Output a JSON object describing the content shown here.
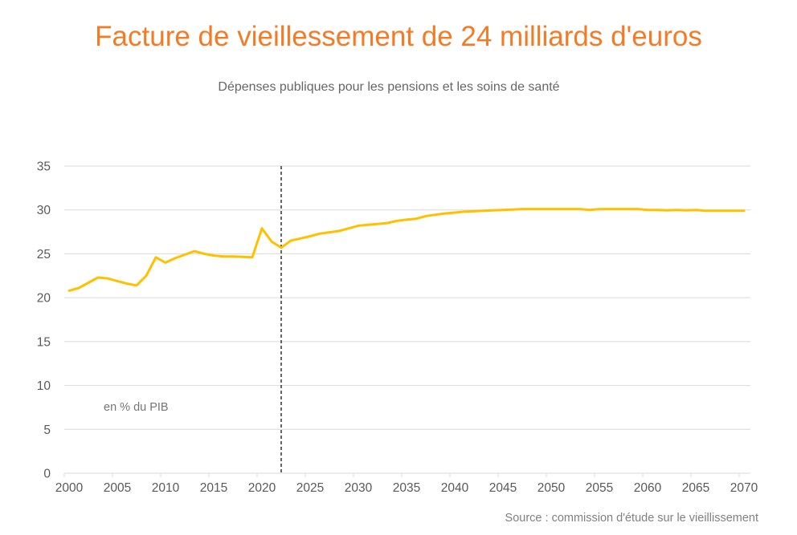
{
  "header": {
    "title": "Facture de vieillessement de 24 milliards d'euros",
    "subtitle": "Dépenses publiques pour les pensions et les soins de santé"
  },
  "footer": {
    "source": "Source : commission d'étude sur le vieillissement"
  },
  "colors": {
    "title": "#F47B26",
    "series": "#FFC000",
    "grid": "#D9D9D9",
    "marker_line": "#000000"
  },
  "chart_data": {
    "type": "line",
    "title": "Facture de vieillessement de 24 milliards d'euros",
    "subtitle": "Dépenses publiques pour les pensions et les soins de santé",
    "xlabel": "",
    "ylabel": "",
    "annotation": "en % du PIB",
    "ylim": [
      0,
      35
    ],
    "yticks": [
      0,
      5,
      10,
      15,
      20,
      25,
      30,
      35
    ],
    "xlim": [
      2000,
      2070
    ],
    "xticks": [
      2000,
      2005,
      2010,
      2015,
      2020,
      2025,
      2030,
      2035,
      2040,
      2045,
      2050,
      2055,
      2060,
      2065,
      2070
    ],
    "grid": true,
    "legend": "none",
    "vertical_marker": {
      "x": 2022,
      "style": "dashed"
    },
    "x": [
      2000,
      2001,
      2002,
      2003,
      2004,
      2005,
      2006,
      2007,
      2008,
      2009,
      2010,
      2011,
      2012,
      2013,
      2014,
      2015,
      2016,
      2017,
      2018,
      2019,
      2020,
      2021,
      2022,
      2023,
      2024,
      2025,
      2026,
      2027,
      2028,
      2029,
      2030,
      2031,
      2032,
      2033,
      2034,
      2035,
      2036,
      2037,
      2038,
      2039,
      2040,
      2041,
      2042,
      2043,
      2044,
      2045,
      2046,
      2047,
      2048,
      2049,
      2050,
      2051,
      2052,
      2053,
      2054,
      2055,
      2056,
      2057,
      2058,
      2059,
      2060,
      2061,
      2062,
      2063,
      2064,
      2065,
      2066,
      2067,
      2068,
      2069,
      2070
    ],
    "series": [
      {
        "name": "Dépenses publiques (pensions et soins de santé)",
        "values": [
          20.8,
          21.1,
          21.7,
          22.3,
          22.2,
          21.9,
          21.6,
          21.4,
          22.5,
          24.6,
          24.0,
          24.5,
          24.9,
          25.3,
          25.0,
          24.8,
          24.7,
          24.7,
          24.65,
          24.6,
          27.9,
          26.4,
          25.7,
          26.5,
          26.75,
          27.0,
          27.3,
          27.45,
          27.6,
          27.9,
          28.2,
          28.3,
          28.4,
          28.5,
          28.75,
          28.9,
          29.0,
          29.3,
          29.45,
          29.6,
          29.7,
          29.8,
          29.85,
          29.9,
          29.95,
          30.0,
          30.05,
          30.1,
          30.1,
          30.1,
          30.1,
          30.1,
          30.1,
          30.1,
          30.0,
          30.1,
          30.1,
          30.1,
          30.1,
          30.1,
          30.0,
          30.0,
          29.95,
          30.0,
          29.95,
          30.0,
          29.9,
          29.9,
          29.9,
          29.9,
          29.9
        ]
      }
    ]
  }
}
